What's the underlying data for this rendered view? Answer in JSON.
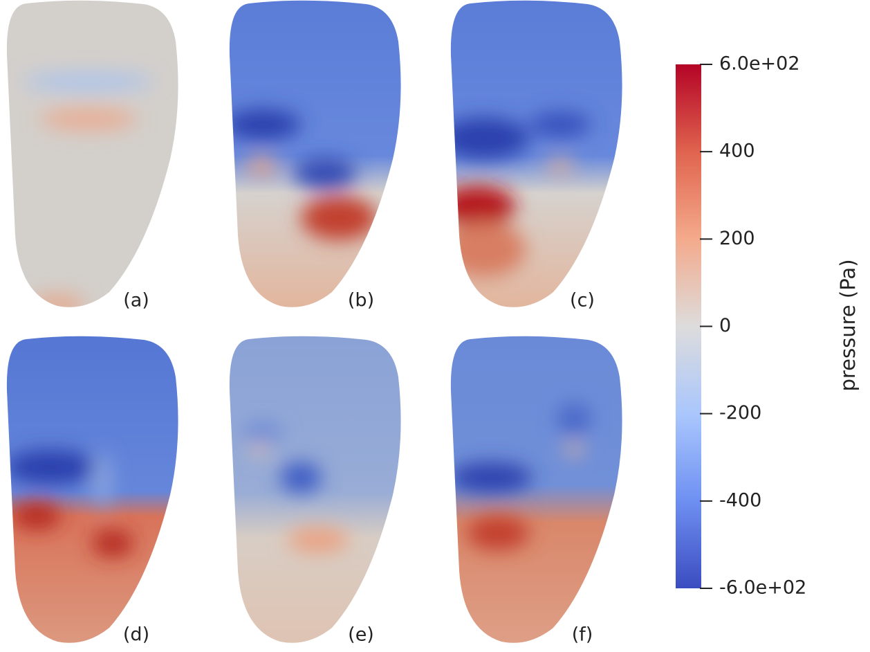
{
  "panels": [
    {
      "label": "(a)"
    },
    {
      "label": "(b)"
    },
    {
      "label": "(c)"
    },
    {
      "label": "(d)"
    },
    {
      "label": "(e)"
    },
    {
      "label": "(f)"
    }
  ],
  "colorbar": {
    "title": "pressure (Pa)",
    "lim": [
      -600,
      600
    ],
    "ticks": [
      {
        "value": 600,
        "label": "6.0e+02"
      },
      400,
      200,
      0,
      -200,
      -400,
      {
        "value": -600,
        "label": "-6.0e+02"
      }
    ]
  }
}
